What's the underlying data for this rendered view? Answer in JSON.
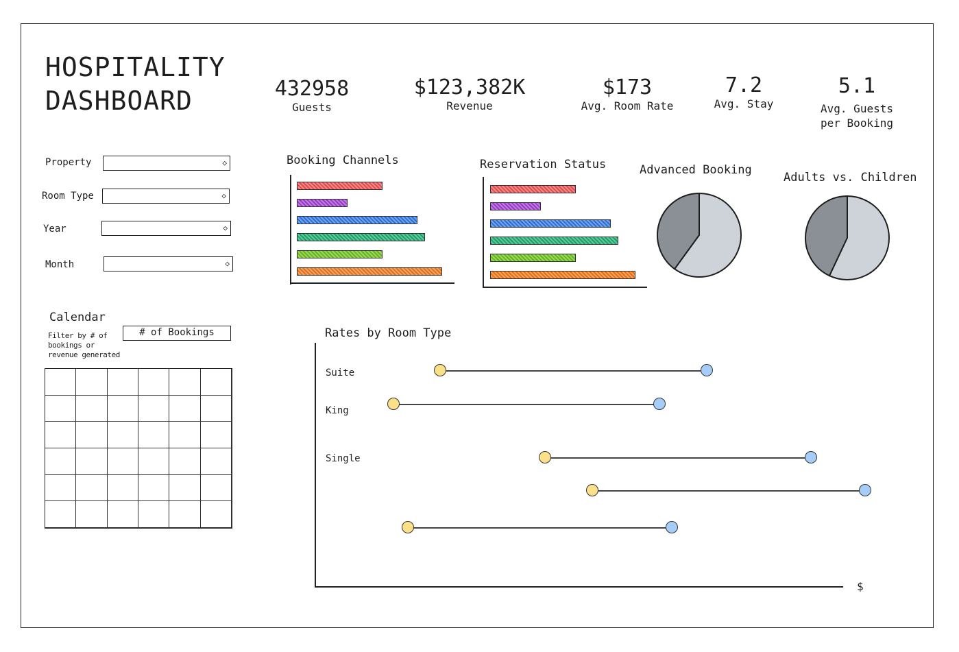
{
  "header": {
    "title_line1": "HOSPITALITY",
    "title_line2": "DASHBOARD"
  },
  "kpis": [
    {
      "value": "432958",
      "label": "Guests"
    },
    {
      "value": "$123,382K",
      "label": "Revenue"
    },
    {
      "value": "$173",
      "label": "Avg. Room Rate"
    },
    {
      "value": "7.2",
      "label": "Avg. Stay"
    },
    {
      "value": "5.1",
      "label": "Avg. Guests",
      "label2": "per Booking"
    }
  ],
  "filters": [
    {
      "label": "Property"
    },
    {
      "label": "Room Type"
    },
    {
      "label": "Year"
    },
    {
      "label": "Month"
    }
  ],
  "calendar": {
    "title": "Calendar",
    "hint": "Filter by # of bookings or revenue generated",
    "toggle": "# of Bookings"
  },
  "colors": [
    "#f08a8a",
    "#c27be0",
    "#6fa6ea",
    "#5cc9a0",
    "#9fd65c",
    "#f2a65a"
  ],
  "chart_data": [
    {
      "type": "bar",
      "title": "Booking Channels",
      "orientation": "horizontal",
      "values": [
        59,
        35,
        83,
        88,
        59,
        100
      ]
    },
    {
      "type": "bar",
      "title": "Reservation Status",
      "orientation": "horizontal",
      "values": [
        59,
        35,
        83,
        88,
        59,
        100
      ]
    },
    {
      "type": "pie",
      "title": "Advanced Booking",
      "values": [
        40,
        60
      ],
      "colors": [
        "#8a9096",
        "#ced3da"
      ]
    },
    {
      "type": "pie",
      "title": "Adults vs. Children",
      "values": [
        43,
        57
      ],
      "colors": [
        "#8a9096",
        "#ced3da"
      ]
    },
    {
      "type": "dumbbell",
      "title": "Rates by Room Type",
      "xlabel": "$",
      "xlim": [
        0,
        120
      ],
      "rows": [
        {
          "label": "Suite",
          "low": 26.5,
          "high": 83.2
        },
        {
          "label": "King",
          "low": 16.6,
          "high": 73.1
        },
        {
          "label": "Single",
          "low": 48.8,
          "high": 105.3
        },
        {
          "label": "",
          "low": 58.8,
          "high": 116.8
        },
        {
          "label": "",
          "low": 19.7,
          "high": 75.7
        }
      ],
      "low_color": "#fbe08a",
      "high_color": "#a6cdf7"
    }
  ]
}
